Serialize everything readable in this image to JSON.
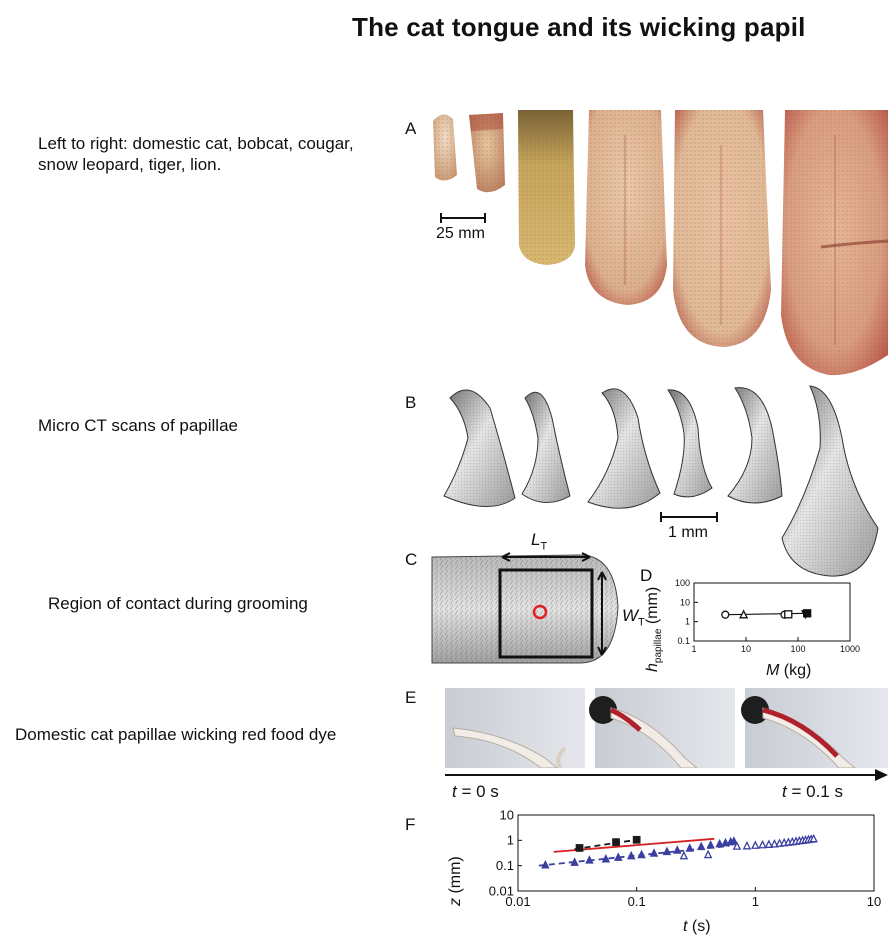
{
  "title": "The cat tongue and its wicking papil",
  "captions": {
    "a": "Left to right: domestic cat, bobcat, cougar, snow leopard, tiger, lion.",
    "b": "Micro CT scans of papillae",
    "c": "Region of contact during grooming",
    "e": "Domestic cat papillae wicking red food dye"
  },
  "panel_letters": [
    "A",
    "B",
    "C",
    "D",
    "E",
    "F"
  ],
  "panel_a": {
    "scale_label": "25 mm"
  },
  "panel_b": {
    "scale_label": "1 mm"
  },
  "panel_c": {
    "length_label": "L",
    "length_sub": "T",
    "width_label": "W",
    "width_sub": "T"
  },
  "panel_e": {
    "t_start_var": "t",
    "t_start_rest": " = 0 s",
    "t_end_var": "t",
    "t_end_rest": " = 0.1 s"
  },
  "chart_data": [
    {
      "panel": "D",
      "type": "scatter",
      "xlabel_var": "M",
      "xlabel_unit": " (kg)",
      "ylabel_var": "h",
      "ylabel_sub": "papillae",
      "ylabel_unit": " (mm)",
      "xscale": "log",
      "yscale": "log",
      "xlim": [
        1,
        1000
      ],
      "ylim": [
        0.1,
        100
      ],
      "x_ticks": [
        "1",
        "10",
        "100",
        "1000"
      ],
      "y_ticks": [
        "0.1",
        "1",
        "10",
        "100"
      ],
      "points": [
        {
          "x": 4,
          "y": 2.3,
          "marker": "circle"
        },
        {
          "x": 9,
          "y": 2.4,
          "marker": "triangle"
        },
        {
          "x": 55,
          "y": 2.3,
          "marker": "circle"
        },
        {
          "x": 65,
          "y": 2.4,
          "marker": "square"
        },
        {
          "x": 140,
          "y": 2.4,
          "marker": "triangle-down-filled"
        },
        {
          "x": 150,
          "y": 2.7,
          "marker": "square-filled"
        }
      ]
    },
    {
      "panel": "F",
      "type": "scatter",
      "xlabel_var": "t",
      "xlabel_unit": " (s)",
      "ylabel_var": "z",
      "ylabel_unit": " (mm)",
      "xscale": "log",
      "yscale": "log",
      "xlim": [
        0.01,
        10
      ],
      "ylim": [
        0.01,
        10
      ],
      "x_ticks": [
        "0.01",
        "0.1",
        "1",
        "10"
      ],
      "y_ticks": [
        "0.01",
        "0.1",
        "1",
        "10"
      ],
      "series": [
        {
          "color": "#1a1a1a",
          "marker": "square-filled",
          "x": [
            0.033,
            0.067,
            0.1
          ],
          "y": [
            0.5,
            0.85,
            1.05
          ]
        },
        {
          "color": "#3a3fa0",
          "marker": "triangle-filled",
          "x": [
            0.017,
            0.03,
            0.04,
            0.055,
            0.07,
            0.09,
            0.11,
            0.14,
            0.18,
            0.22,
            0.28,
            0.35,
            0.42,
            0.5,
            0.56,
            0.62,
            0.66
          ],
          "y": [
            0.11,
            0.14,
            0.17,
            0.19,
            0.22,
            0.25,
            0.28,
            0.32,
            0.37,
            0.42,
            0.5,
            0.58,
            0.67,
            0.75,
            0.82,
            0.9,
            0.95
          ]
        },
        {
          "color": "#3a3fa0",
          "marker": "triangle-open",
          "x": [
            0.25,
            0.4,
            0.7,
            0.85,
            1.0,
            1.15,
            1.3,
            1.45,
            1.6,
            1.75,
            1.9,
            2.05,
            2.2,
            2.35,
            2.5,
            2.65,
            2.8,
            2.95,
            3.1
          ],
          "y": [
            0.25,
            0.28,
            0.6,
            0.62,
            0.65,
            0.68,
            0.71,
            0.74,
            0.78,
            0.82,
            0.86,
            0.9,
            0.94,
            0.98,
            1.02,
            1.06,
            1.1,
            1.14,
            1.18
          ]
        }
      ],
      "lines": [
        {
          "color": "#d42020",
          "style": "solid",
          "x": [
            0.02,
            0.45
          ],
          "y": [
            0.35,
            1.15
          ]
        },
        {
          "color": "#1a1a1a",
          "style": "dashed",
          "x": [
            0.03,
            0.1
          ],
          "y": [
            0.45,
            1.05
          ]
        },
        {
          "color": "#3a3fa0",
          "style": "dashed",
          "x": [
            0.015,
            0.6
          ],
          "y": [
            0.1,
            0.6
          ]
        }
      ]
    }
  ]
}
